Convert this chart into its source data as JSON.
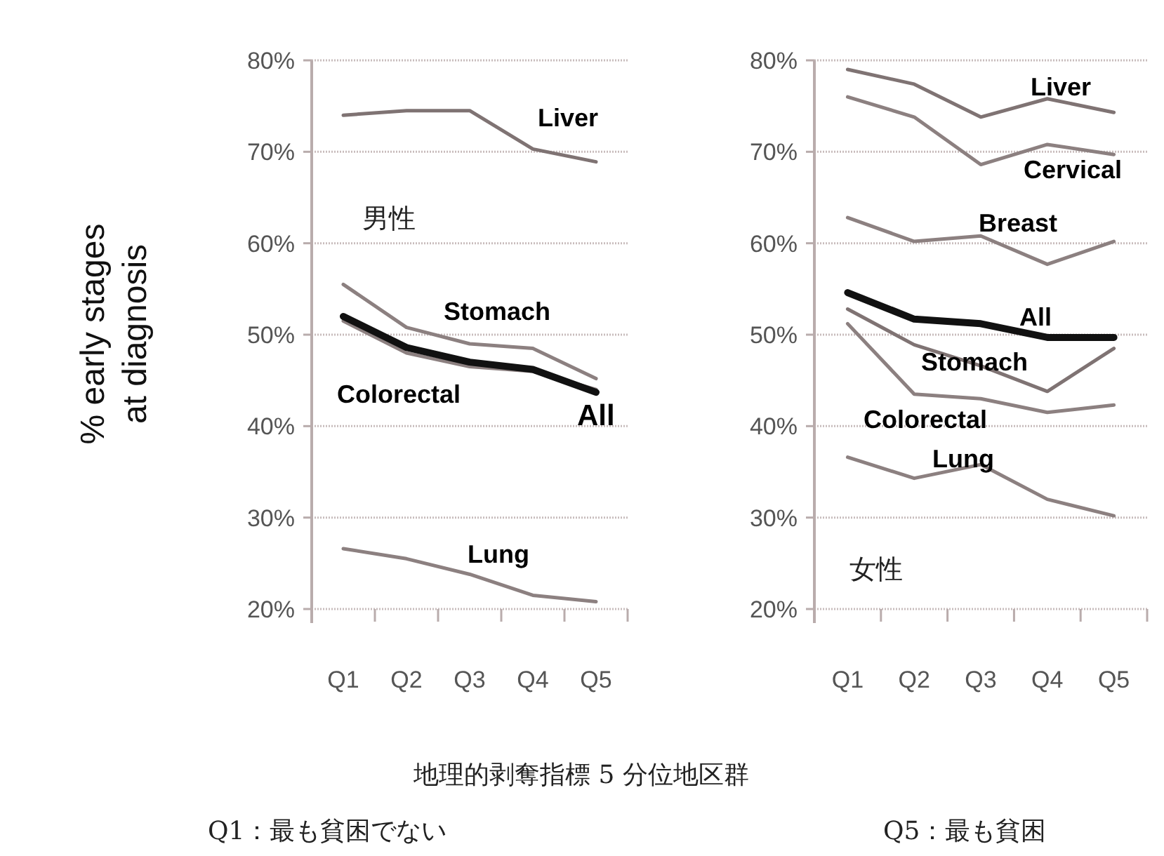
{
  "chart_data": [
    {
      "type": "line",
      "title": "男性",
      "ylabel": "% early stages\nat diagnosis",
      "xlabel": "地理的剥奪指標 5 分位地区群",
      "annotations": [
        "Q1：最も貧困でない",
        "Q5：最も貧困"
      ],
      "categories": [
        "Q1",
        "Q2",
        "Q3",
        "Q4",
        "Q5"
      ],
      "ylim": [
        20,
        80
      ],
      "yticks": [
        {
          "value": 20,
          "label": "20%"
        },
        {
          "value": 30,
          "label": "30%"
        },
        {
          "value": 40,
          "label": "40%"
        },
        {
          "value": 50,
          "label": "50%"
        },
        {
          "value": 60,
          "label": "60%"
        },
        {
          "value": 70,
          "label": "70%"
        },
        {
          "value": 80,
          "label": "80%"
        }
      ],
      "grid": "y",
      "marker": "none",
      "series": [
        {
          "name": "Liver",
          "color": "#7f7373",
          "values": [
            74,
            74.5,
            74.5,
            70.3,
            68.9
          ]
        },
        {
          "name": "Stomach",
          "color": "#8c8080",
          "values": [
            55.5,
            50.8,
            49,
            48.5,
            45.2
          ]
        },
        {
          "name": "Colorectal",
          "color": "#8c8080",
          "values": [
            51.5,
            48,
            46.5,
            46,
            44
          ]
        },
        {
          "name": "All",
          "color": "#111111",
          "values": [
            52,
            48.6,
            47,
            46.2,
            43.7
          ]
        },
        {
          "name": "Lung",
          "color": "#8c8080",
          "values": [
            26.6,
            25.5,
            23.8,
            21.5,
            20.8
          ]
        }
      ]
    },
    {
      "type": "line",
      "title": "女性",
      "categories": [
        "Q1",
        "Q2",
        "Q3",
        "Q4",
        "Q5"
      ],
      "ylim": [
        20,
        80
      ],
      "yticks": [
        {
          "value": 20,
          "label": "20%"
        },
        {
          "value": 30,
          "label": "30%"
        },
        {
          "value": 40,
          "label": "40%"
        },
        {
          "value": 50,
          "label": "50%"
        },
        {
          "value": 60,
          "label": "60%"
        },
        {
          "value": 70,
          "label": "70%"
        },
        {
          "value": 80,
          "label": "80%"
        }
      ],
      "grid": "y",
      "marker": "none",
      "series": [
        {
          "name": "Liver",
          "color": "#7f7373",
          "values": [
            79,
            77.4,
            73.8,
            75.8,
            74.3
          ]
        },
        {
          "name": "Cervical",
          "color": "#8c8080",
          "values": [
            76,
            73.8,
            68.6,
            70.8,
            69.7
          ]
        },
        {
          "name": "Breast",
          "color": "#8c8080",
          "values": [
            62.8,
            60.2,
            60.8,
            57.7,
            60.2
          ]
        },
        {
          "name": "All",
          "color": "#111111",
          "values": [
            54.6,
            51.7,
            51.2,
            49.7,
            49.7
          ]
        },
        {
          "name": "Stomach",
          "color": "#7f7373",
          "values": [
            52.8,
            48.9,
            46.6,
            43.8,
            48.5
          ]
        },
        {
          "name": "Colorectal",
          "color": "#8c8080",
          "values": [
            51.2,
            43.5,
            43,
            41.5,
            42.3
          ]
        },
        {
          "name": "Lung",
          "color": "#8c8080",
          "values": [
            36.6,
            34.3,
            35.8,
            32,
            30.2
          ]
        }
      ]
    }
  ]
}
